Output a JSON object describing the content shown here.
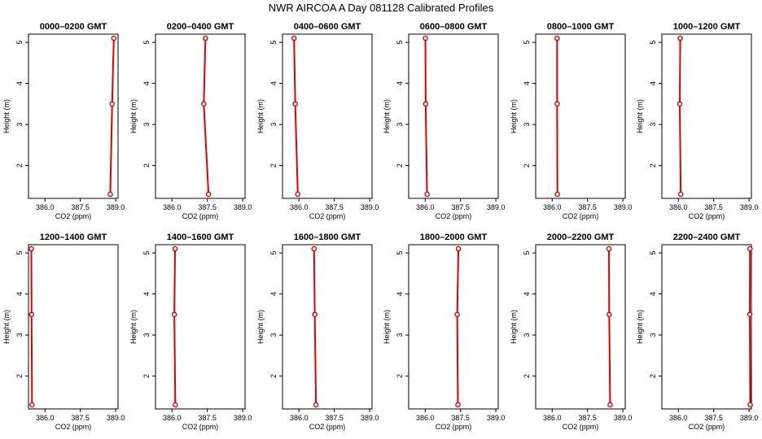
{
  "title": "NWR AIRCOA A  Day 081128  Calibrated Profiles",
  "colors": {
    "series": "#dd0000",
    "axis": "#000000",
    "background": "#ffffff"
  },
  "chart_data": [
    {
      "type": "line",
      "title": "0000–0200 GMT",
      "xlabel": "CO2 (ppm)",
      "ylabel": "Height (m)",
      "xlim": [
        385.3,
        389.1
      ],
      "ylim": [
        1.2,
        5.2
      ],
      "xticks": [
        "386.0",
        "387.5",
        "389.0"
      ],
      "yticks": [
        "2",
        "3",
        "4",
        "5"
      ],
      "grid": false,
      "series": [
        {
          "x": [
            388.77,
            388.85,
            388.92
          ],
          "y": [
            1.3,
            3.5,
            5.1
          ]
        }
      ]
    },
    {
      "type": "line",
      "title": "0200–0400 GMT",
      "xlabel": "CO2 (ppm)",
      "ylabel": "Height (m)",
      "xlim": [
        385.3,
        389.1
      ],
      "ylim": [
        1.2,
        5.2
      ],
      "xticks": [
        "386.0",
        "387.5",
        "389.0"
      ],
      "yticks": [
        "2",
        "3",
        "4",
        "5"
      ],
      "grid": false,
      "series": [
        {
          "x": [
            387.55,
            387.35,
            387.42
          ],
          "y": [
            1.3,
            3.5,
            5.1
          ]
        }
      ]
    },
    {
      "type": "line",
      "title": "0400–0600 GMT",
      "xlabel": "CO2 (ppm)",
      "ylabel": "Height (m)",
      "xlim": [
        385.3,
        389.1
      ],
      "ylim": [
        1.2,
        5.2
      ],
      "xticks": [
        "386.0",
        "387.5",
        "389.0"
      ],
      "yticks": [
        "2",
        "3",
        "4",
        "5"
      ],
      "grid": false,
      "series": [
        {
          "x": [
            385.95,
            385.84,
            385.79
          ],
          "y": [
            1.3,
            3.5,
            5.1
          ]
        }
      ]
    },
    {
      "type": "line",
      "title": "0600–0800 GMT",
      "xlabel": "CO2 (ppm)",
      "ylabel": "Height (m)",
      "xlim": [
        385.3,
        389.1
      ],
      "ylim": [
        1.2,
        5.2
      ],
      "xticks": [
        "386.0",
        "387.5",
        "389.0"
      ],
      "yticks": [
        "2",
        "3",
        "4",
        "5"
      ],
      "grid": false,
      "series": [
        {
          "x": [
            386.08,
            386.02,
            386.01
          ],
          "y": [
            1.3,
            3.5,
            5.1
          ]
        }
      ]
    },
    {
      "type": "line",
      "title": "0800–1000 GMT",
      "xlabel": "CO2 (ppm)",
      "ylabel": "Height (m)",
      "xlim": [
        385.3,
        389.1
      ],
      "ylim": [
        1.2,
        5.2
      ],
      "xticks": [
        "386.0",
        "387.5",
        "389.0"
      ],
      "yticks": [
        "2",
        "3",
        "4",
        "5"
      ],
      "grid": false,
      "series": [
        {
          "x": [
            386.22,
            386.21,
            386.21
          ],
          "y": [
            1.3,
            3.5,
            5.1
          ]
        }
      ]
    },
    {
      "type": "line",
      "title": "1000–1200 GMT",
      "xlabel": "CO2 (ppm)",
      "ylabel": "Height (m)",
      "xlim": [
        385.3,
        389.1
      ],
      "ylim": [
        1.2,
        5.2
      ],
      "xticks": [
        "386.0",
        "387.5",
        "389.0"
      ],
      "yticks": [
        "2",
        "3",
        "4",
        "5"
      ],
      "grid": false,
      "series": [
        {
          "x": [
            386.1,
            386.06,
            386.08
          ],
          "y": [
            1.3,
            3.5,
            5.1
          ]
        }
      ]
    },
    {
      "type": "line",
      "title": "1200–1400 GMT",
      "xlabel": "CO2 (ppm)",
      "ylabel": "Height (m)",
      "xlim": [
        385.3,
        389.1
      ],
      "ylim": [
        1.2,
        5.2
      ],
      "xticks": [
        "386.0",
        "387.5",
        "389.0"
      ],
      "yticks": [
        "2",
        "3",
        "4",
        "5"
      ],
      "grid": false,
      "series": [
        {
          "x": [
            385.45,
            385.43,
            385.42
          ],
          "y": [
            1.3,
            3.5,
            5.1
          ]
        }
      ]
    },
    {
      "type": "line",
      "title": "1400–1600 GMT",
      "xlabel": "CO2 (ppm)",
      "ylabel": "Height (m)",
      "xlim": [
        385.3,
        389.1
      ],
      "ylim": [
        1.2,
        5.2
      ],
      "xticks": [
        "386.0",
        "387.5",
        "389.0"
      ],
      "yticks": [
        "2",
        "3",
        "4",
        "5"
      ],
      "grid": false,
      "series": [
        {
          "x": [
            386.14,
            386.1,
            386.13
          ],
          "y": [
            1.3,
            3.5,
            5.1
          ]
        }
      ]
    },
    {
      "type": "line",
      "title": "1600–1800 GMT",
      "xlabel": "CO2 (ppm)",
      "ylabel": "Height (m)",
      "xlim": [
        385.3,
        389.1
      ],
      "ylim": [
        1.2,
        5.2
      ],
      "xticks": [
        "386.0",
        "387.5",
        "389.0"
      ],
      "yticks": [
        "2",
        "3",
        "4",
        "5"
      ],
      "grid": false,
      "series": [
        {
          "x": [
            386.72,
            386.67,
            386.64
          ],
          "y": [
            1.3,
            3.5,
            5.1
          ]
        }
      ]
    },
    {
      "type": "line",
      "title": "1800–2000 GMT",
      "xlabel": "CO2 (ppm)",
      "ylabel": "Height (m)",
      "xlim": [
        385.3,
        389.1
      ],
      "ylim": [
        1.2,
        5.2
      ],
      "xticks": [
        "386.0",
        "387.5",
        "389.0"
      ],
      "yticks": [
        "2",
        "3",
        "4",
        "5"
      ],
      "grid": false,
      "series": [
        {
          "x": [
            387.39,
            387.36,
            387.41
          ],
          "y": [
            1.3,
            3.5,
            5.1
          ]
        }
      ]
    },
    {
      "type": "line",
      "title": "2000–2200 GMT",
      "xlabel": "CO2 (ppm)",
      "ylabel": "Height (m)",
      "xlim": [
        385.3,
        389.1
      ],
      "ylim": [
        1.2,
        5.2
      ],
      "xticks": [
        "386.0",
        "387.5",
        "389.0"
      ],
      "yticks": [
        "2",
        "3",
        "4",
        "5"
      ],
      "grid": false,
      "series": [
        {
          "x": [
            388.46,
            388.42,
            388.41
          ],
          "y": [
            1.3,
            3.5,
            5.1
          ]
        }
      ]
    },
    {
      "type": "line",
      "title": "2200–2400 GMT",
      "xlabel": "CO2 (ppm)",
      "ylabel": "Height (m)",
      "xlim": [
        385.3,
        389.1
      ],
      "ylim": [
        1.2,
        5.2
      ],
      "xticks": [
        "386.0",
        "387.5",
        "389.0"
      ],
      "yticks": [
        "2",
        "3",
        "4",
        "5"
      ],
      "grid": false,
      "series": [
        {
          "x": [
            389.05,
            389.03,
            389.04
          ],
          "y": [
            1.3,
            3.5,
            5.1
          ]
        }
      ]
    }
  ]
}
